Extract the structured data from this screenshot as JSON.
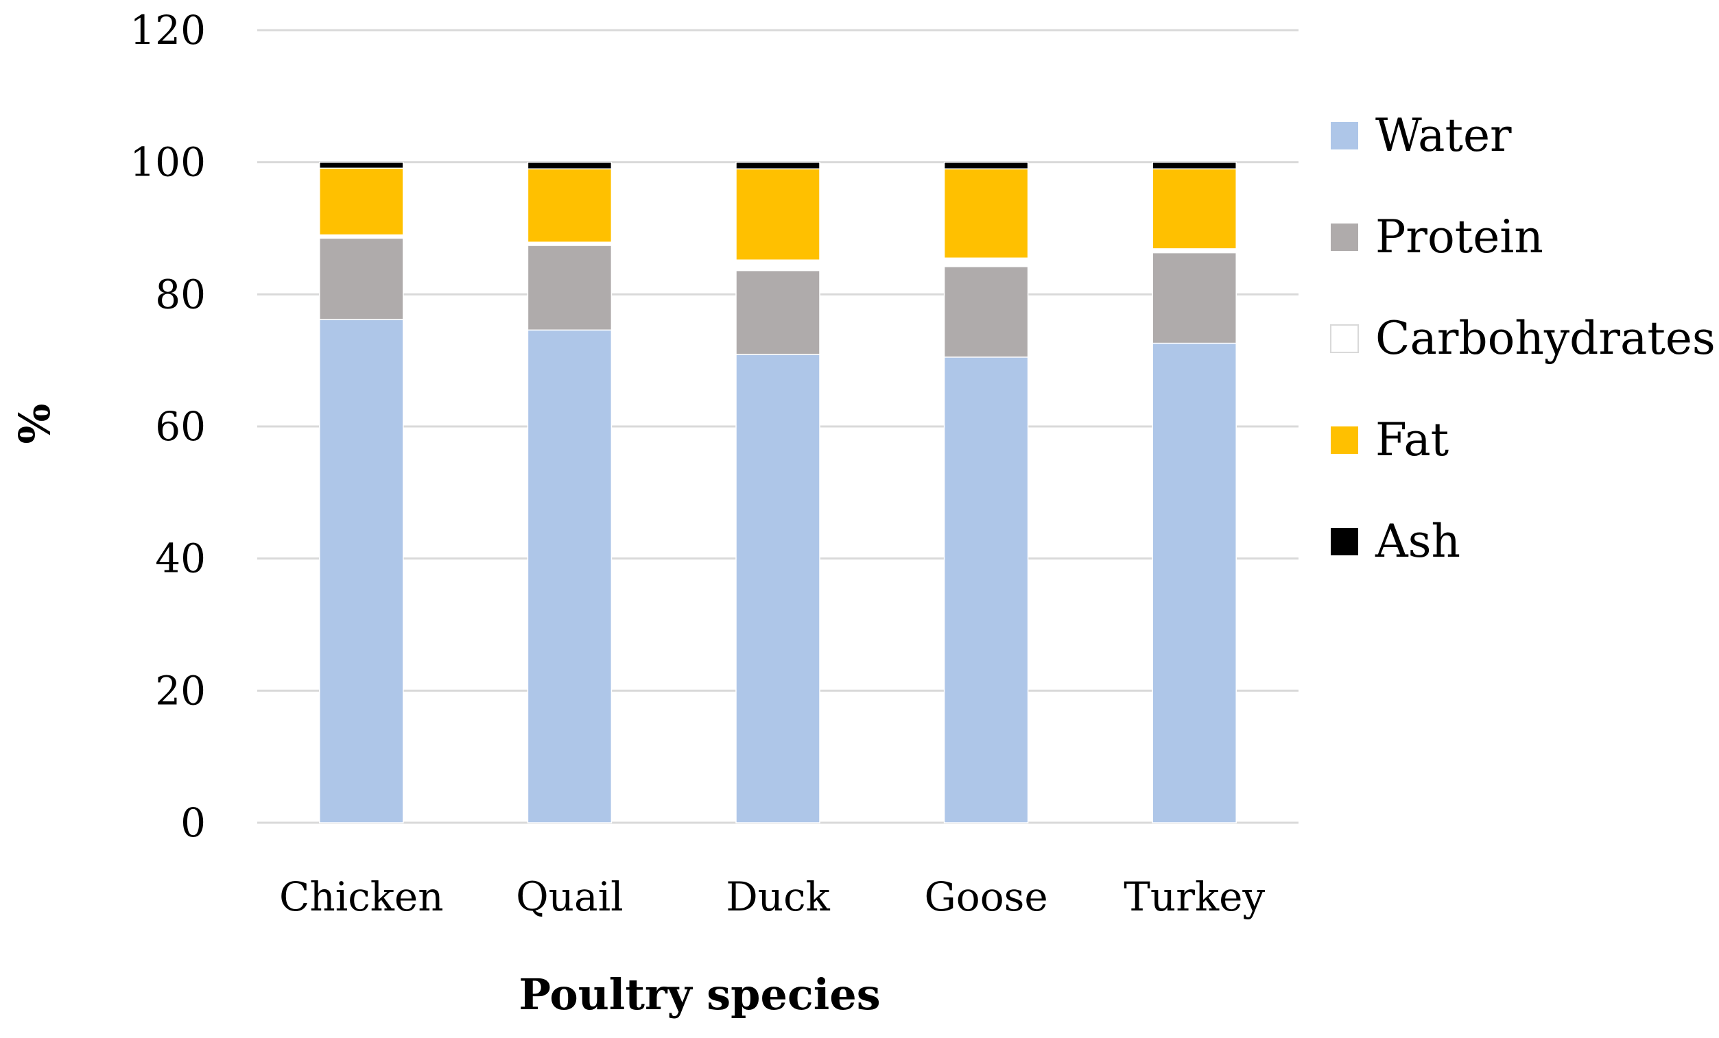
{
  "chart_data": {
    "type": "bar",
    "stacked": true,
    "title": "",
    "xlabel": "Poultry species",
    "ylabel": "%",
    "ylim": [
      0,
      120
    ],
    "yticks": [
      "0",
      "20",
      "40",
      "60",
      "80",
      "100",
      "120"
    ],
    "categories": [
      "Chicken",
      "Quail",
      "Duck",
      "Goose",
      "Turkey"
    ],
    "series": [
      {
        "name": "Water",
        "color": "#aec6e8",
        "values": [
          76.2,
          74.6,
          70.9,
          70.5,
          72.6
        ]
      },
      {
        "name": "Protein",
        "color": "#afabab",
        "values": [
          12.3,
          12.8,
          12.7,
          13.7,
          13.7
        ]
      },
      {
        "name": "Carbohydrates",
        "color": "#ffffff",
        "values": [
          0.5,
          0.5,
          1.6,
          1.3,
          0.6
        ]
      },
      {
        "name": "Fat",
        "color": "#ffc000",
        "values": [
          10.1,
          11.1,
          13.8,
          13.5,
          12.1
        ]
      },
      {
        "name": "Ash",
        "color": "#000000",
        "values": [
          0.9,
          1.0,
          1.0,
          1.0,
          1.0
        ]
      }
    ],
    "grid": true,
    "legend_position": "right"
  }
}
